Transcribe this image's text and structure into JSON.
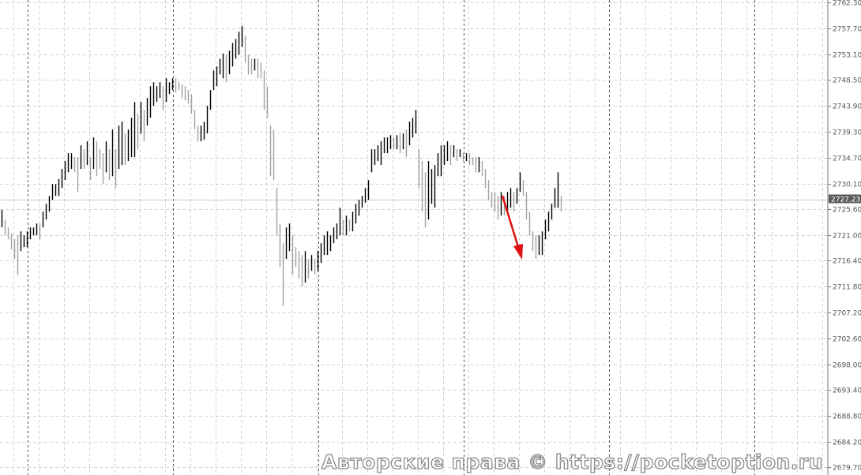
{
  "chart_data": {
    "type": "bar",
    "style": "high-low bars",
    "symbol_current_price": "2727.23",
    "ylim": [
      2679.7,
      2762.3
    ],
    "y_ticks": [
      "2762.30",
      "2757.70",
      "2753.10",
      "2748.50",
      "2743.90",
      "2739.30",
      "2734.70",
      "2730.10",
      "2725.60",
      "2721.00",
      "2716.40",
      "2711.80",
      "2707.20",
      "2702.60",
      "2698.00",
      "2693.40",
      "2688.80",
      "2684.20",
      "2679.70"
    ],
    "grid": true,
    "bars_high_low": [
      [
        2725.4,
        2722.3
      ],
      [
        2723.7,
        2720.9
      ],
      [
        2722.3,
        2720.2
      ],
      [
        2721.2,
        2718.4
      ],
      [
        2720.2,
        2716.7
      ],
      [
        2720.9,
        2713.9
      ],
      [
        2721.6,
        2718.1
      ],
      [
        2720.9,
        2718.8
      ],
      [
        2721.6,
        2718.8
      ],
      [
        2722.3,
        2720.2
      ],
      [
        2722.3,
        2720.9
      ],
      [
        2723.0,
        2720.9
      ],
      [
        2723.0,
        2720.2
      ],
      [
        2725.1,
        2722.3
      ],
      [
        2726.5,
        2723.7
      ],
      [
        2727.9,
        2725.1
      ],
      [
        2730.0,
        2727.2
      ],
      [
        2730.0,
        2727.9
      ],
      [
        2730.9,
        2727.9
      ],
      [
        2732.7,
        2729.3
      ],
      [
        2734.1,
        2730.7
      ],
      [
        2735.5,
        2732.1
      ],
      [
        2735.5,
        2732.7
      ],
      [
        2734.8,
        2732.1
      ],
      [
        2734.8,
        2728.6
      ],
      [
        2736.9,
        2732.7
      ],
      [
        2736.2,
        2732.7
      ],
      [
        2737.6,
        2733.4
      ],
      [
        2734.8,
        2730.7
      ],
      [
        2738.3,
        2732.7
      ],
      [
        2737.6,
        2731.4
      ],
      [
        2736.2,
        2732.7
      ],
      [
        2735.5,
        2730.0
      ],
      [
        2737.6,
        2732.1
      ],
      [
        2736.2,
        2730.7
      ],
      [
        2739.7,
        2731.4
      ],
      [
        2736.2,
        2729.3
      ],
      [
        2740.4,
        2732.7
      ],
      [
        2741.1,
        2733.4
      ],
      [
        2739.0,
        2733.4
      ],
      [
        2739.7,
        2734.1
      ],
      [
        2741.8,
        2734.8
      ],
      [
        2744.6,
        2734.8
      ],
      [
        2742.5,
        2736.2
      ],
      [
        2744.6,
        2739.0
      ],
      [
        2743.2,
        2737.6
      ],
      [
        2745.3,
        2740.4
      ],
      [
        2747.4,
        2741.8
      ],
      [
        2748.1,
        2743.9
      ],
      [
        2747.4,
        2744.6
      ],
      [
        2748.1,
        2745.3
      ],
      [
        2747.4,
        2743.2
      ],
      [
        2748.8,
        2744.6
      ],
      [
        2748.1,
        2746.0
      ],
      [
        2748.8,
        2746.7
      ],
      [
        2748.8,
        2746.3
      ],
      [
        2748.1,
        2746.7
      ],
      [
        2747.7,
        2745.3
      ],
      [
        2747.4,
        2744.9
      ],
      [
        2746.7,
        2744.3
      ],
      [
        2746.0,
        2742.5
      ],
      [
        2743.2,
        2739.7
      ],
      [
        2740.4,
        2737.6
      ],
      [
        2740.4,
        2737.6
      ],
      [
        2741.1,
        2737.9
      ],
      [
        2743.9,
        2739.0
      ],
      [
        2746.7,
        2743.2
      ],
      [
        2750.2,
        2746.7
      ],
      [
        2750.9,
        2747.4
      ],
      [
        2752.3,
        2749.5
      ],
      [
        2753.2,
        2748.8
      ],
      [
        2753.0,
        2748.1
      ],
      [
        2753.7,
        2749.5
      ],
      [
        2755.1,
        2750.9
      ],
      [
        2755.8,
        2752.3
      ],
      [
        2757.1,
        2753.0
      ],
      [
        2758.1,
        2754.4
      ],
      [
        2756.4,
        2751.6
      ],
      [
        2753.0,
        2749.5
      ],
      [
        2752.3,
        2749.5
      ],
      [
        2752.3,
        2750.2
      ],
      [
        2752.3,
        2748.8
      ],
      [
        2751.6,
        2748.8
      ],
      [
        2750.2,
        2743.2
      ],
      [
        2747.4,
        2741.8
      ],
      [
        2740.4,
        2731.4
      ],
      [
        2739.7,
        2730.7
      ],
      [
        2729.3,
        2720.9
      ],
      [
        2723.0,
        2715.3
      ],
      [
        2719.5,
        2708.3
      ],
      [
        2722.3,
        2716.7
      ],
      [
        2723.0,
        2718.1
      ],
      [
        2720.9,
        2713.9
      ],
      [
        2718.8,
        2715.3
      ],
      [
        2718.1,
        2713.2
      ],
      [
        2717.4,
        2711.8
      ],
      [
        2718.1,
        2712.5
      ],
      [
        2716.7,
        2713.2
      ],
      [
        2717.4,
        2714.6
      ],
      [
        2716.7,
        2713.9
      ],
      [
        2718.1,
        2714.6
      ],
      [
        2719.5,
        2716.0
      ],
      [
        2720.9,
        2717.4
      ],
      [
        2721.6,
        2717.4
      ],
      [
        2720.9,
        2718.1
      ],
      [
        2722.3,
        2719.5
      ],
      [
        2723.0,
        2720.2
      ],
      [
        2725.8,
        2720.9
      ],
      [
        2723.7,
        2720.9
      ],
      [
        2724.4,
        2720.9
      ],
      [
        2723.7,
        2721.6
      ],
      [
        2725.1,
        2721.6
      ],
      [
        2726.5,
        2723.0
      ],
      [
        2727.2,
        2724.4
      ],
      [
        2727.9,
        2725.8
      ],
      [
        2729.3,
        2726.7
      ],
      [
        2730.7,
        2727.2
      ],
      [
        2736.2,
        2732.1
      ],
      [
        2736.2,
        2733.4
      ],
      [
        2736.9,
        2734.1
      ],
      [
        2737.6,
        2733.4
      ],
      [
        2738.3,
        2735.5
      ],
      [
        2738.3,
        2735.5
      ],
      [
        2738.7,
        2736.2
      ],
      [
        2738.3,
        2736.2
      ],
      [
        2738.7,
        2736.2
      ],
      [
        2739.0,
        2735.5
      ],
      [
        2739.0,
        2736.2
      ],
      [
        2739.7,
        2734.8
      ],
      [
        2741.1,
        2736.9
      ],
      [
        2741.8,
        2738.3
      ],
      [
        2743.2,
        2739.0
      ],
      [
        2736.2,
        2729.3
      ],
      [
        2734.1,
        2725.1
      ],
      [
        2732.1,
        2722.3
      ],
      [
        2734.1,
        2723.7
      ],
      [
        2732.7,
        2726.5
      ],
      [
        2733.4,
        2725.8
      ],
      [
        2735.5,
        2731.4
      ],
      [
        2736.9,
        2731.4
      ],
      [
        2736.9,
        2733.4
      ],
      [
        2737.6,
        2734.1
      ],
      [
        2736.9,
        2733.4
      ],
      [
        2736.9,
        2734.8
      ],
      [
        2736.2,
        2734.1
      ],
      [
        2736.2,
        2734.8
      ],
      [
        2735.5,
        2734.1
      ],
      [
        2735.5,
        2734.1
      ],
      [
        2735.5,
        2733.4
      ],
      [
        2734.8,
        2733.4
      ],
      [
        2734.8,
        2732.1
      ],
      [
        2734.8,
        2732.1
      ],
      [
        2734.1,
        2731.4
      ],
      [
        2732.7,
        2729.3
      ],
      [
        2730.7,
        2727.2
      ],
      [
        2728.6,
        2725.8
      ],
      [
        2728.6,
        2725.1
      ],
      [
        2727.9,
        2723.7
      ],
      [
        2728.6,
        2724.4
      ],
      [
        2727.9,
        2724.4
      ],
      [
        2728.6,
        2725.1
      ],
      [
        2729.3,
        2725.8
      ],
      [
        2728.6,
        2725.1
      ],
      [
        2729.3,
        2726.5
      ],
      [
        2732.1,
        2728.6
      ],
      [
        2730.7,
        2727.9
      ],
      [
        2728.6,
        2723.7
      ],
      [
        2725.1,
        2720.9
      ],
      [
        2721.6,
        2718.1
      ],
      [
        2720.9,
        2716.7
      ],
      [
        2720.9,
        2717.4
      ],
      [
        2721.6,
        2717.4
      ],
      [
        2723.7,
        2720.2
      ],
      [
        2725.1,
        2721.6
      ],
      [
        2726.5,
        2723.7
      ],
      [
        2729.3,
        2725.8
      ],
      [
        2732.1,
        2725.8
      ],
      [
        2727.9,
        2725.1
      ]
    ]
  },
  "colors": {
    "bar_up": "#000000",
    "bar_down": "#a0a0a0",
    "grid": "#d4d4d4",
    "period_separator": "#555555",
    "current_price_line": "#cccccc",
    "current_price_label_bg": "#5a5a5a",
    "arrow": "#e01010"
  },
  "annotation": {
    "type": "arrow",
    "direction": "down"
  },
  "watermark": "Авторские права © https://pocketoption.ru"
}
